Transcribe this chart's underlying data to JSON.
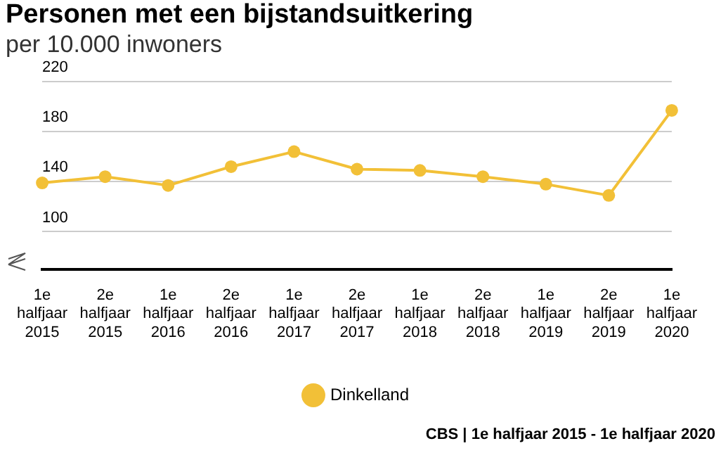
{
  "chart_data": {
    "type": "line",
    "title": "Personen met een bijstandsuitkering",
    "subtitle": "per 10.000 inwoners",
    "categories": [
      "1e halfjaar 2015",
      "2e halfjaar 2015",
      "1e halfjaar 2016",
      "2e halfjaar 2016",
      "1e halfjaar 2017",
      "2e halfjaar 2017",
      "1e halfjaar 2018",
      "2e halfjaar 2018",
      "1e halfjaar 2019",
      "2e halfjaar 2019",
      "1e halfjaar 2020"
    ],
    "series": [
      {
        "name": "Dinkelland",
        "color": "#f2c037",
        "values": [
          139,
          144,
          137,
          152,
          164,
          150,
          149,
          144,
          138,
          129,
          197
        ]
      }
    ],
    "ylim": [
      70,
      220
    ],
    "yticks": [
      100,
      140,
      180,
      220
    ],
    "grid": "y",
    "legend": "bottom",
    "marker": "circle",
    "line_style": "solid",
    "annotations": [
      "CBS | 1e halfjaar 2015 - 1e halfjaar 2020"
    ]
  }
}
